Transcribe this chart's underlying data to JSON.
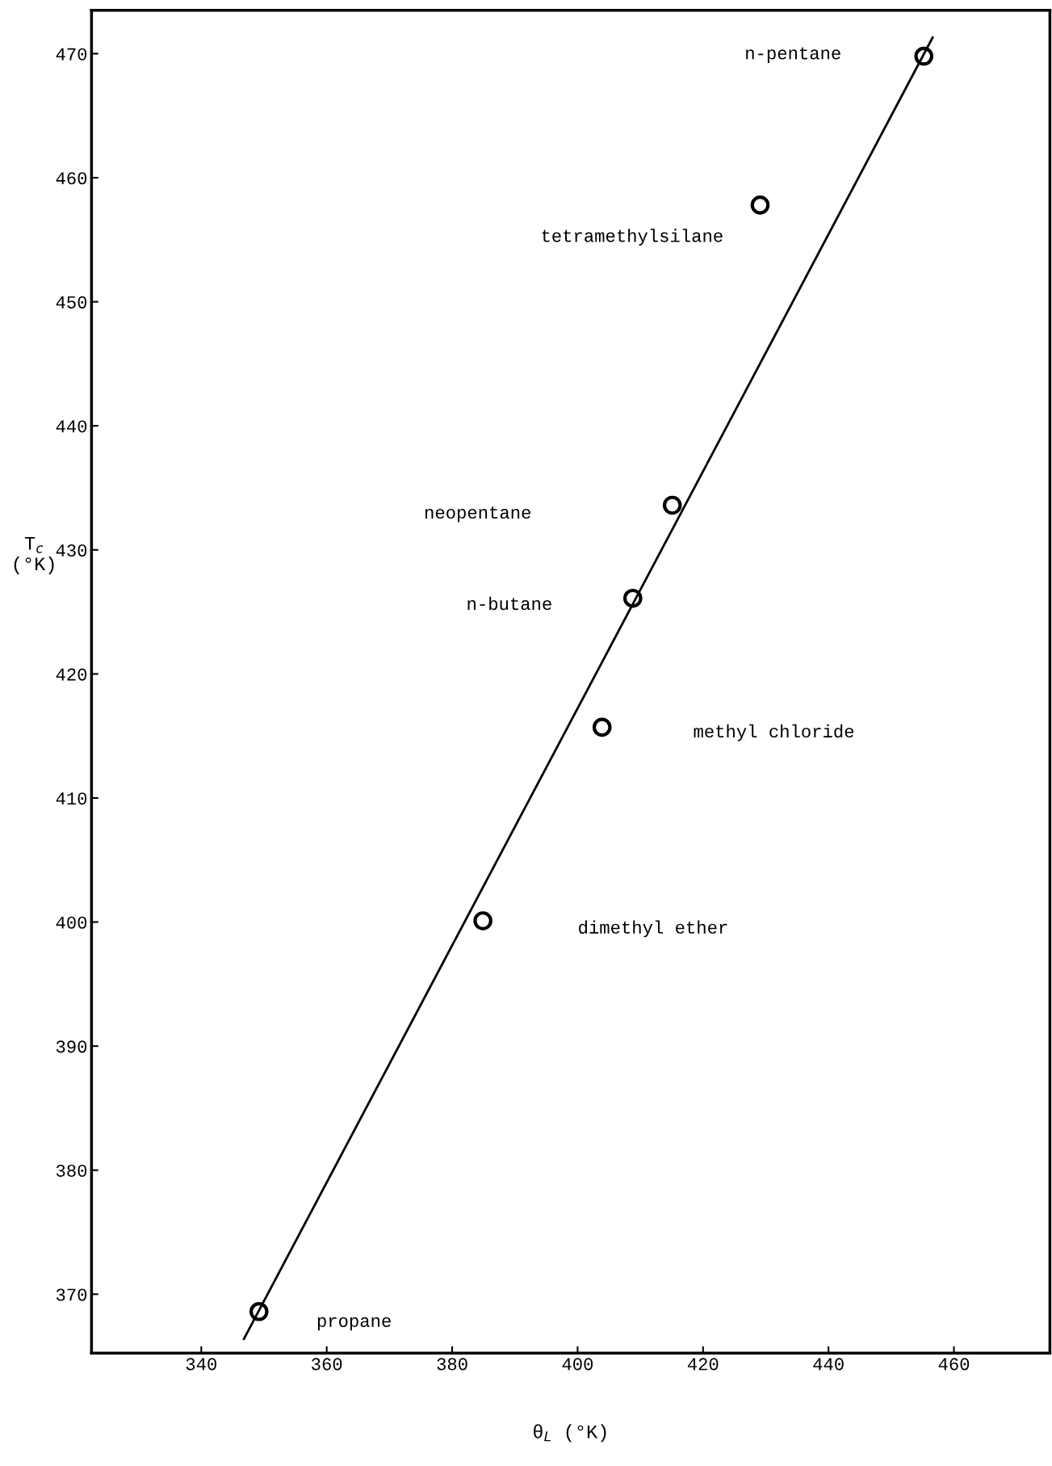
{
  "chart_data": {
    "type": "scatter",
    "xlabel": "θ$_{L}$ (°K)",
    "ylabel": "T$_{c}$\n(°K)",
    "xlim": [
      322.5,
      475.3
    ],
    "ylim": [
      365.25,
      473.5
    ],
    "xticks": [
      340,
      360,
      380,
      400,
      420,
      440,
      460
    ],
    "yticks": [
      370,
      380,
      390,
      400,
      410,
      420,
      430,
      440,
      450,
      460,
      470
    ],
    "grid": false,
    "marker": "circle",
    "series": [
      {
        "color": "#000000",
        "x": [
          349.2,
          384.9,
          403.9,
          408.8,
          415.1,
          429.1,
          455.2
        ],
        "values": [
          368.6,
          400.1,
          415.7,
          426.1,
          433.6,
          457.8,
          469.8
        ]
      },
      {
        "type": "line",
        "marker": "none",
        "color": "#000000",
        "line_style": "solid",
        "x": [
          346.8,
          456.6
        ],
        "values": [
          366.4,
          471.3
        ]
      }
    ],
    "annotations": [
      "propane",
      "dimethyl ether",
      "methyl chloride",
      "n-butane",
      "neopentane",
      "tetramethylsilane",
      "n-pentane"
    ]
  }
}
